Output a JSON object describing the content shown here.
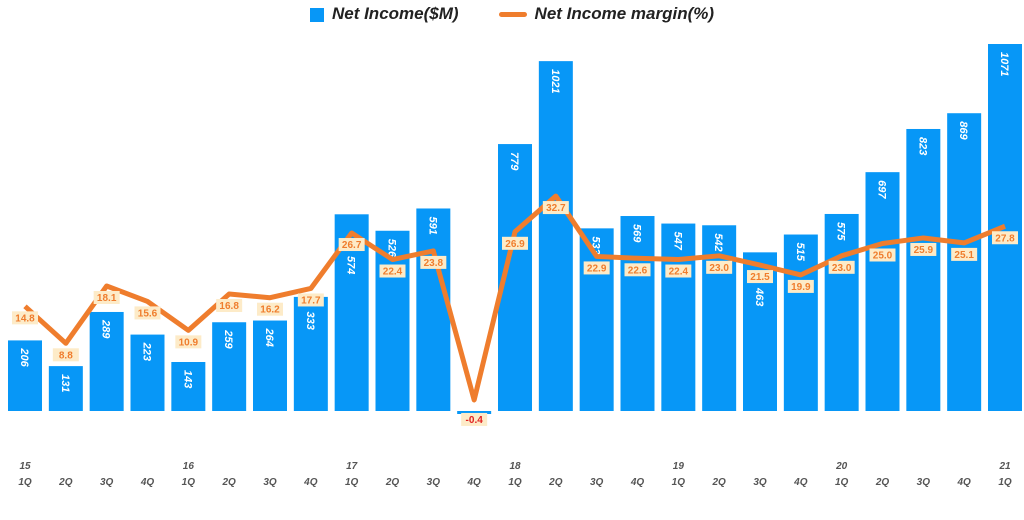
{
  "chart_data": {
    "type": "bar+line",
    "categories": [
      "1Q",
      "2Q",
      "3Q",
      "4Q",
      "1Q",
      "2Q",
      "3Q",
      "4Q",
      "1Q",
      "2Q",
      "3Q",
      "4Q",
      "1Q",
      "2Q",
      "3Q",
      "4Q",
      "1Q",
      "2Q",
      "3Q",
      "4Q",
      "1Q",
      "2Q",
      "3Q",
      "4Q",
      "1Q"
    ],
    "year_labels": [
      "15",
      "",
      "",
      "",
      "16",
      "",
      "",
      "",
      "17",
      "",
      "",
      "",
      "18",
      "",
      "",
      "",
      "19",
      "",
      "",
      "",
      "20",
      "",
      "",
      "",
      "21"
    ],
    "series": [
      {
        "name": "Net Income($M)",
        "type": "bar",
        "color": "#0797f7",
        "values": [
          206,
          131,
          289,
          223,
          143,
          259,
          264,
          333,
          574,
          526,
          591,
          -8,
          779,
          1021,
          533,
          569,
          547,
          542,
          463,
          515,
          575,
          697,
          823,
          869,
          1071
        ]
      },
      {
        "name": "Net Income margin(%)",
        "type": "line",
        "color": "#ef7d2d",
        "values": [
          14.8,
          8.8,
          18.1,
          15.6,
          10.9,
          16.8,
          16.2,
          17.7,
          26.7,
          22.4,
          23.8,
          -0.4,
          26.9,
          32.7,
          22.9,
          22.6,
          22.4,
          23.0,
          21.5,
          19.9,
          23.0,
          25.0,
          25.9,
          25.1,
          27.8
        ]
      }
    ],
    "legend_position": "top",
    "grid": false
  }
}
